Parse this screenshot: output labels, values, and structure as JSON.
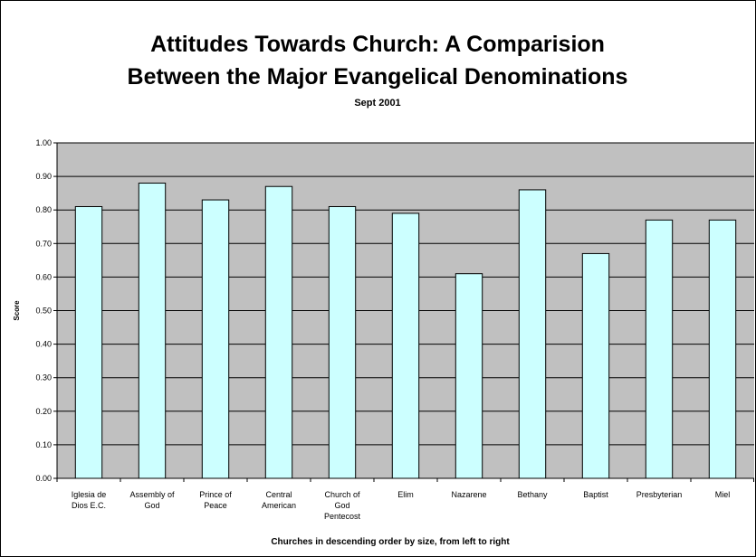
{
  "chart_data": {
    "type": "bar",
    "title_lines": [
      "Attitudes Towards Church: A Comparision",
      "Between the Major Evangelical Denominations"
    ],
    "subtitle": "Sept 2001",
    "xlabel": "Churches in descending order by size, from left to right",
    "ylabel": "Score",
    "ylim": [
      0,
      1
    ],
    "yticks": [
      "0.00",
      "0.10",
      "0.20",
      "0.30",
      "0.40",
      "0.50",
      "0.60",
      "0.70",
      "0.80",
      "0.90",
      "1.00"
    ],
    "grid": true,
    "legend": "none",
    "categories": [
      [
        "Iglesia de",
        "Dios E.C."
      ],
      [
        "Assembly of",
        "God"
      ],
      [
        "Prince of",
        "Peace"
      ],
      [
        "Central",
        "American"
      ],
      [
        "Church of",
        "God",
        "Pentecost"
      ],
      [
        "Elim"
      ],
      [
        "Nazarene"
      ],
      [
        "Bethany"
      ],
      [
        "Baptist"
      ],
      [
        "Presbyterian"
      ],
      [
        "Miel"
      ]
    ],
    "values": [
      0.81,
      0.88,
      0.83,
      0.87,
      0.81,
      0.79,
      0.61,
      0.86,
      0.67,
      0.77,
      0.77
    ],
    "colors": {
      "plot_background": "#c0c0c0",
      "bar_fill": "#ccffff",
      "bar_stroke": "#000000",
      "gridline": "#000000"
    }
  }
}
